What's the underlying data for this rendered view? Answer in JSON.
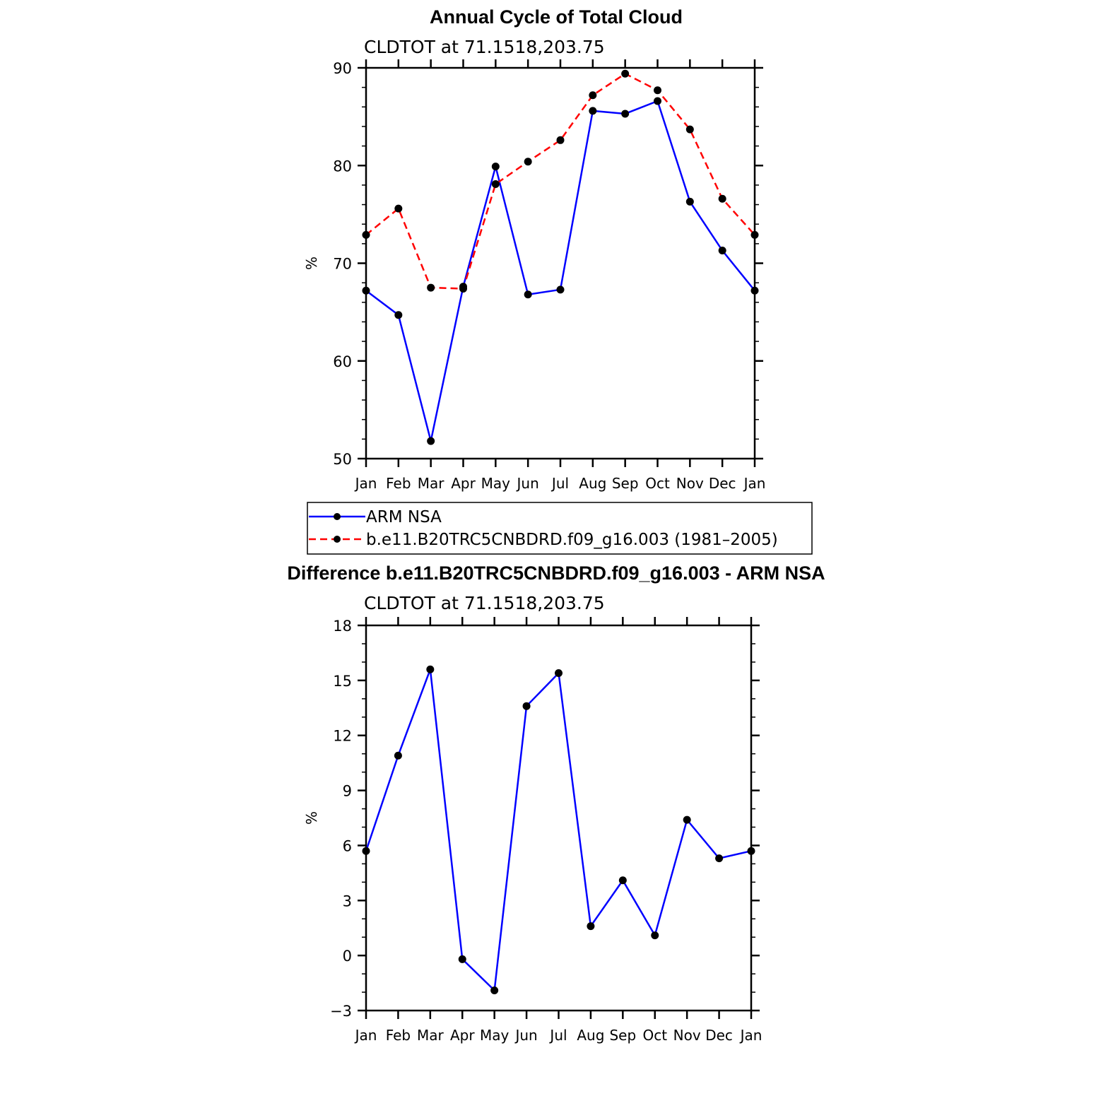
{
  "chart_data": [
    {
      "type": "line",
      "title": "Annual Cycle of Total Cloud",
      "subtitle": "CLDTOT  at  71.1518,203.75",
      "xlabel": "",
      "ylabel": "%",
      "categories": [
        "Jan",
        "Feb",
        "Mar",
        "Apr",
        "May",
        "Jun",
        "Jul",
        "Aug",
        "Sep",
        "Oct",
        "Nov",
        "Dec",
        "Jan"
      ],
      "ylim": [
        50,
        90
      ],
      "yticks": [
        50,
        60,
        70,
        80,
        90
      ],
      "ytick_labels": [
        "50",
        "60",
        "70",
        "80",
        "90"
      ],
      "series": [
        {
          "name": "ARM  NSA",
          "color": "#0000ff",
          "dash": "solid",
          "values": [
            67.2,
            64.7,
            51.8,
            67.6,
            79.9,
            66.8,
            67.3,
            85.6,
            85.3,
            86.6,
            76.3,
            71.3,
            67.2
          ]
        },
        {
          "name": "b.e11.B20TRC5CNBDRD.f09_g16.003 (1981–2005)",
          "color": "#ff0000",
          "dash": "dashed",
          "values": [
            72.9,
            75.6,
            67.5,
            67.4,
            78.1,
            80.4,
            82.6,
            87.2,
            89.4,
            87.7,
            83.7,
            76.6,
            72.9
          ]
        }
      ]
    },
    {
      "type": "line",
      "title": "Difference b.e11.B20TRC5CNBDRD.f09_g16.003 - ARM NSA",
      "subtitle": "CLDTOT  at  71.1518,203.75",
      "xlabel": "",
      "ylabel": "%",
      "categories": [
        "Jan",
        "Feb",
        "Mar",
        "Apr",
        "May",
        "Jun",
        "Jul",
        "Aug",
        "Sep",
        "Oct",
        "Nov",
        "Dec",
        "Jan"
      ],
      "ylim": [
        -3,
        18
      ],
      "yticks": [
        -3,
        0,
        3,
        6,
        9,
        12,
        15,
        18
      ],
      "ytick_labels": [
        "−3",
        "0",
        "3",
        "6",
        "9",
        "12",
        "15",
        "18"
      ],
      "series": [
        {
          "name": "Difference",
          "color": "#0000ff",
          "dash": "solid",
          "values": [
            5.7,
            10.9,
            15.6,
            -0.2,
            -1.9,
            13.6,
            15.4,
            1.6,
            4.1,
            1.1,
            7.4,
            5.3,
            5.7
          ]
        }
      ]
    }
  ]
}
